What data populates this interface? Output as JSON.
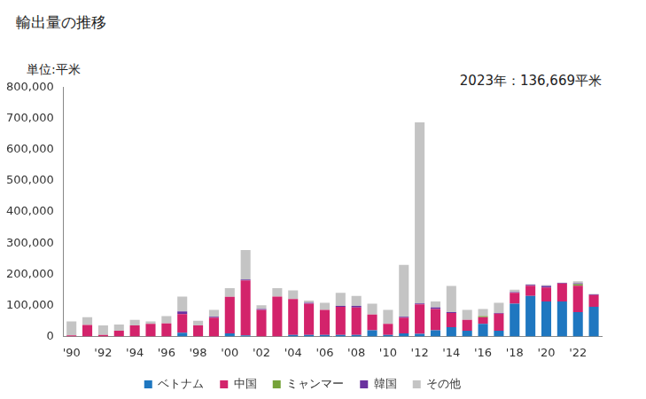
{
  "chart_data": {
    "type": "bar",
    "title": "輸出量の推移",
    "ylabel": "単位:平米",
    "annotations": [
      "2023年：136,669平米"
    ],
    "stacked": true,
    "grid": false,
    "legend": "bottom",
    "categories": [
      "'90",
      null,
      "'92",
      null,
      "'94",
      null,
      "'96",
      null,
      "'98",
      null,
      "'00",
      null,
      "'02",
      null,
      "'04",
      null,
      "'06",
      null,
      "'08",
      null,
      "'10",
      null,
      "'12",
      null,
      "'14",
      null,
      "'16",
      null,
      "'18",
      null,
      "'20",
      null,
      "'22",
      null
    ],
    "series": [
      {
        "name": "ベトナム",
        "color": "#1f77c0",
        "values": [
          0,
          0,
          0,
          0,
          0,
          0,
          0,
          12000,
          0,
          0,
          10000,
          3000,
          0,
          0,
          5000,
          5000,
          5000,
          5000,
          5000,
          20000,
          5000,
          10000,
          8000,
          20000,
          30000,
          18000,
          40000,
          18000,
          105000,
          130000,
          112000,
          112000,
          78000,
          95000
        ]
      },
      {
        "name": "中国",
        "color": "#d3236b",
        "values": [
          3000,
          37000,
          5000,
          18000,
          35000,
          40000,
          42000,
          60000,
          35000,
          60000,
          117000,
          177000,
          85000,
          128000,
          115000,
          100000,
          80000,
          90000,
          88000,
          50000,
          35000,
          50000,
          95000,
          68000,
          45000,
          35000,
          22000,
          55000,
          35000,
          33000,
          45000,
          58000,
          85000,
          38000
        ]
      },
      {
        "name": "ミャンマー",
        "color": "#76a33a",
        "values": [
          0,
          0,
          0,
          0,
          0,
          0,
          0,
          0,
          0,
          0,
          0,
          0,
          0,
          0,
          0,
          0,
          0,
          0,
          0,
          0,
          0,
          0,
          0,
          0,
          0,
          0,
          3000,
          0,
          0,
          0,
          0,
          0,
          5000,
          0
        ]
      },
      {
        "name": "韓国",
        "color": "#6a329f",
        "values": [
          0,
          0,
          0,
          0,
          0,
          0,
          0,
          8000,
          0,
          3000,
          0,
          3000,
          3000,
          0,
          0,
          3000,
          0,
          3000,
          5000,
          0,
          0,
          3000,
          3000,
          5000,
          3000,
          0,
          0,
          2000,
          2000,
          3000,
          5000,
          2000,
          3000,
          2000
        ]
      },
      {
        "name": "その他",
        "color": "#c4c4c4",
        "values": [
          45000,
          25000,
          30000,
          20000,
          18000,
          8000,
          23000,
          48000,
          15000,
          22000,
          28000,
          95000,
          12000,
          27000,
          28000,
          7000,
          23000,
          42000,
          32000,
          35000,
          45000,
          167000,
          582000,
          19000,
          84000,
          32000,
          23000,
          33000,
          8000,
          2000,
          3000,
          1000,
          6000,
          1669
        ]
      }
    ],
    "ylim": [
      0,
      800000
    ],
    "yticks": [
      0,
      {
        "value": 100000,
        "label": "100,000"
      },
      {
        "value": 200000,
        "label": "200,000"
      },
      {
        "value": 300000,
        "label": "300,000"
      },
      {
        "value": 400000,
        "label": "400,000"
      },
      {
        "value": 500000,
        "label": "500,000"
      },
      {
        "value": 600000,
        "label": "600,000"
      },
      {
        "value": 700000,
        "label": "700,000"
      },
      {
        "value": 800000,
        "label": "800,000"
      }
    ]
  }
}
